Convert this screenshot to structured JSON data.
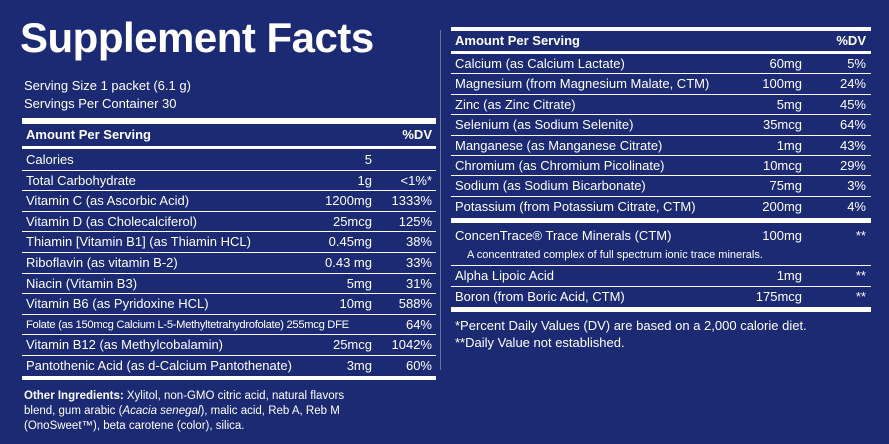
{
  "title": "Supplement Facts",
  "serving": [
    "Serving Size 1 packet (6.1 g)",
    "Servings Per Container 30"
  ],
  "left_table": {
    "header": [
      "Amount Per Serving",
      "%DV"
    ],
    "rows": [
      [
        "Calories",
        "5",
        ""
      ],
      [
        "Total Carbohydrate",
        "1g",
        "<1%*"
      ],
      [
        "Vitamin C (as Ascorbic Acid)",
        "1200mg",
        "1333%"
      ],
      [
        "Vitamin D (as Cholecalciferol)",
        "25mcg",
        "125%"
      ],
      [
        "Thiamin [Vitamin B1] (as Thiamin HCL)",
        "0.45mg",
        "38%"
      ],
      [
        "Riboflavin (as vitamin B-2)",
        "0.43 mg",
        "33%"
      ],
      [
        "Niacin (Vitamin B3)",
        "5mg",
        "31%"
      ],
      [
        "Vitamin B6 (as Pyridoxine HCL)",
        "10mg",
        "588%"
      ],
      [
        "Folate (as 150mcg Calcium L-5-Methyltetrahydrofolate) 255mcg DFE",
        "",
        "64%"
      ],
      [
        "Vitamin B12 (as Methylcobalamin)",
        "25mcg",
        "1042%"
      ],
      [
        "Pantothenic Acid (as d-Calcium Pantothenate)",
        "3mg",
        "60%"
      ]
    ]
  },
  "right_table": {
    "header": [
      "Amount Per Serving",
      "%DV"
    ],
    "rows": [
      [
        "Calcium (as Calcium Lactate)",
        "60mg",
        "5%"
      ],
      [
        "Magnesium (from Magnesium Malate, CTM)",
        "100mg",
        "24%"
      ],
      [
        "Zinc (as Zinc Citrate)",
        "5mg",
        "45%"
      ],
      [
        "Selenium (as Sodium Selenite)",
        "35mcg",
        "64%"
      ],
      [
        "Manganese (as Manganese Citrate)",
        "1mg",
        "43%"
      ],
      [
        "Chromium (as Chromium Picolinate)",
        "10mcg",
        "29%"
      ],
      [
        "Sodium (as Sodium Bicarbonate)",
        "75mg",
        "3%"
      ],
      [
        "Potassium (from Potassium Citrate, CTM)",
        "200mg",
        "4%"
      ]
    ],
    "other_rows": [
      [
        "ConcenTrace® Trace Minerals (CTM)",
        "100mg",
        "**"
      ],
      [
        "Alpha Lipoic Acid",
        "1mg",
        "**"
      ],
      [
        "Boron (from Boric Acid, CTM)",
        "175mcg",
        "**"
      ]
    ],
    "concentrace_note": "A concentrated complex of full spectrum ionic trace minerals."
  },
  "footnotes": [
    "*Percent Daily Values (DV) are based on a 2,000 calorie diet.",
    "**Daily Value not established."
  ],
  "other_ingredients": {
    "label": "Other Ingredients:",
    "parts": [
      "Xylitol, non-GMO citric acid, natural flavors blend, gum arabic (",
      "Acacia senegal",
      "), malic acid, Reb A, Reb M (OnoSweet™), beta carotene (color), silica."
    ]
  }
}
